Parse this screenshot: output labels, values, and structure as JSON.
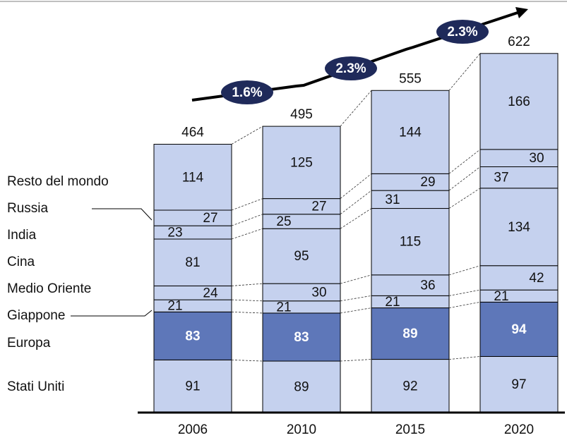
{
  "chart_data": {
    "type": "stacked_bar",
    "categories": [
      "2006",
      "2010",
      "2015",
      "2020"
    ],
    "series": [
      {
        "name": "Stati Uniti",
        "color": "#c5d1ee",
        "values": [
          91,
          89,
          92,
          97
        ]
      },
      {
        "name": "Europa",
        "color": "#5e77b9",
        "values": [
          83,
          83,
          89,
          94
        ]
      },
      {
        "name": "Giappone",
        "color": "#c5d1ee",
        "values": [
          21,
          21,
          21,
          21
        ]
      },
      {
        "name": "Medio Oriente",
        "color": "#c5d1ee",
        "values": [
          24,
          30,
          36,
          42
        ]
      },
      {
        "name": "Cina",
        "color": "#c5d1ee",
        "values": [
          81,
          95,
          115,
          134
        ]
      },
      {
        "name": "India",
        "color": "#c5d1ee",
        "values": [
          23,
          25,
          31,
          37
        ]
      },
      {
        "name": "Russia",
        "color": "#c5d1ee",
        "values": [
          27,
          27,
          29,
          30
        ]
      },
      {
        "name": "Resto del mondo",
        "color": "#c5d1ee",
        "values": [
          114,
          125,
          144,
          166
        ]
      }
    ],
    "totals": [
      464,
      495,
      555,
      622
    ],
    "annotations": [
      "1.6%",
      "2.3%",
      "2.3%"
    ]
  }
}
